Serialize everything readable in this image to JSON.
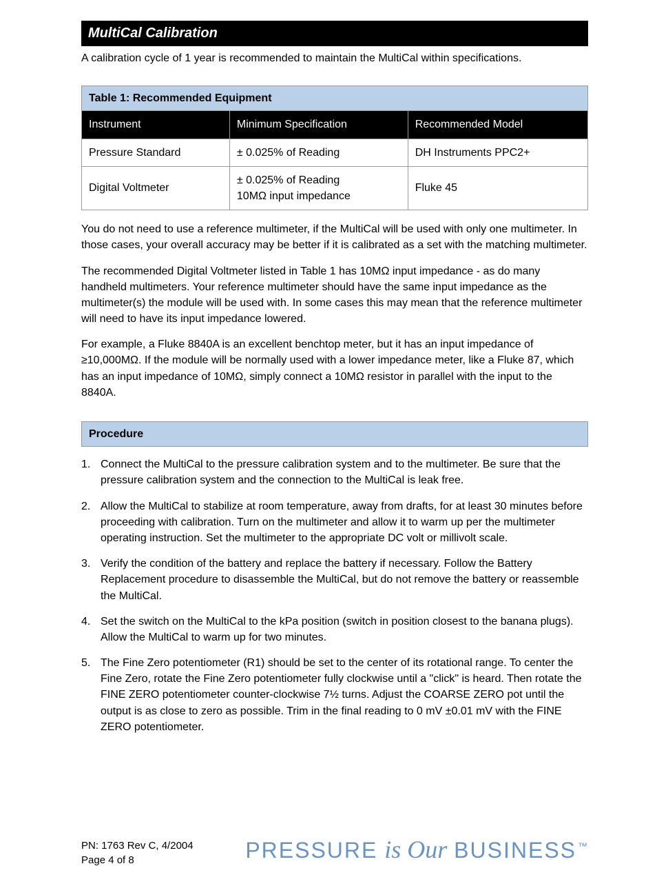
{
  "styles": {
    "header_bg": "#000000",
    "header_fg": "#ffffff",
    "accent_bg": "#b9d0e8",
    "border_color": "#999999",
    "body_font_size": 16,
    "tagline_color": "#6a93c4"
  },
  "section_title": "MultiCal Calibration",
  "intro": "A calibration cycle of 1 year is recommended to maintain the MultiCal within specifications.",
  "table": {
    "caption": "Table 1: Recommended Equipment",
    "columns": [
      "Instrument",
      "Minimum Specification",
      "Recommended Model"
    ],
    "rows": [
      [
        "Pressure Standard",
        "± 0.025% of Reading",
        "DH Instruments PPC2+"
      ],
      [
        "Digital Voltmeter",
        "± 0.025% of Reading\n10MΩ input impedance",
        "Fluke 45"
      ]
    ]
  },
  "paragraphs": [
    "You do not need to use a reference multimeter, if the MultiCal will be used with only one multimeter. In those cases, your overall accuracy may be better if it is calibrated as a set with the matching multimeter.",
    "The recommended Digital Voltmeter listed in Table 1 has 10MΩ input impedance - as do many handheld multimeters. Your reference multimeter should have the same input impedance as the multimeter(s) the module will be used with. In some cases this may mean that the reference multimeter will need to have its input impedance lowered.",
    "For example, a Fluke 8840A is an excellent benchtop meter, but it has an input impedance of ≥10,000MΩ. If the module will be normally used with a lower impedance meter, like a Fluke 87, which has an input impedance of 10MΩ, simply connect a 10MΩ resistor in parallel with the input to the 8840A."
  ],
  "procedure": {
    "title": "Procedure",
    "steps": [
      "Connect the MultiCal to the pressure calibration system and to the multimeter. Be sure that the pressure calibration system and the connection to the MultiCal is leak free.",
      "Allow the MultiCal to stabilize at room temperature, away from drafts, for at least 30 minutes before proceeding with calibration. Turn on the multimeter and allow it to warm up per the multimeter operating instruction. Set the multimeter to the appropriate DC volt or millivolt scale.",
      "Verify the condition of the battery and replace the battery if necessary. Follow the Battery Replacement procedure to disassemble the MultiCal, but do not remove the battery or reassemble the MultiCal.",
      "Set the switch on the MultiCal to the kPa position (switch in position closest to the banana plugs). Allow the MultiCal to warm up for two minutes.",
      "The Fine Zero potentiometer (R1) should be set to the center of its rotational range. To center the Fine Zero, rotate the Fine Zero potentiometer fully clockwise until a \"click\" is heard. Then rotate the FINE ZERO potentiometer counter-clockwise 7½ turns. Adjust the COARSE ZERO pot until the output is as close to zero as possible. Trim in the final reading to 0 mV ±0.01 mV with the FINE ZERO potentiometer."
    ]
  },
  "footer": {
    "pn": "PN: 1763 Rev C, 4/2004",
    "page": "Page 4 of 8",
    "tagline_part1": "PRESSURE",
    "tagline_part2": "is Our",
    "tagline_part3": "BUSINESS",
    "tagline_tm": "™"
  }
}
